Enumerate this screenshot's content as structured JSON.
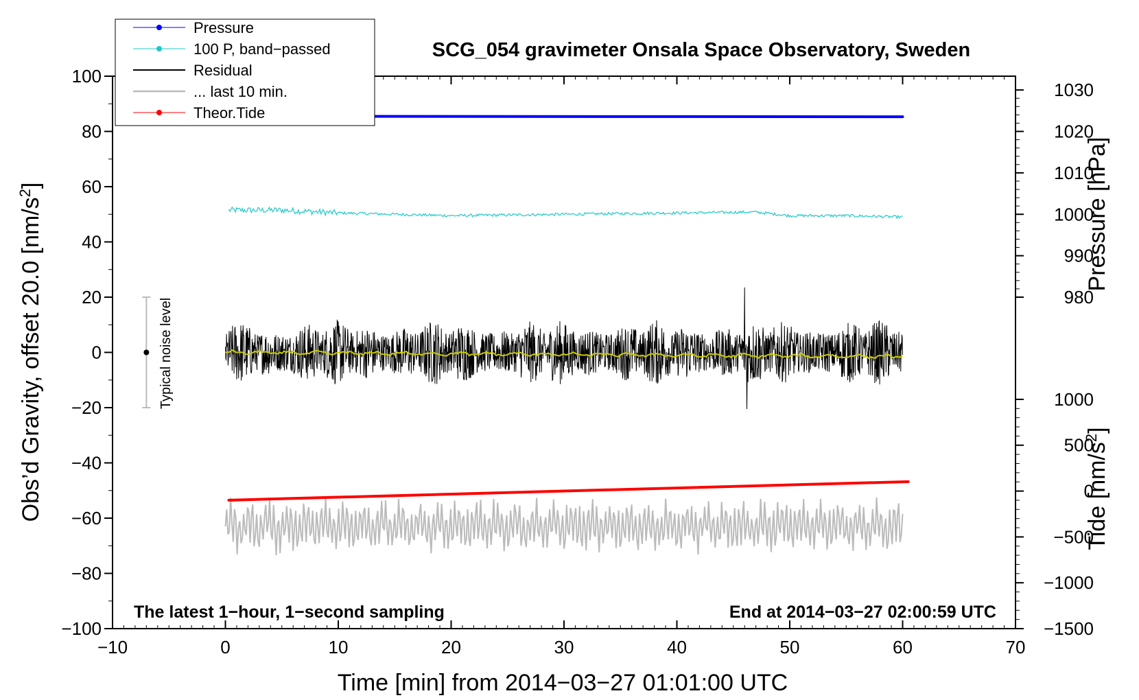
{
  "chart_data": {
    "type": "line",
    "title": "SCG_054 gravimeter Onsala Space Observatory, Sweden",
    "xlabel": "Time [min] from 2014−03−27 01:01:00 UTC",
    "ylabel_main": "Obs’d Gravity, offset 20.0 [nm/s",
    "ylabel_main_sup": "2",
    "ylabel_main_end": "]",
    "ylabel_pressure": "Pressure [hPa]",
    "ylabel_tide": "Tide [nm/s",
    "ylabel_tide_sup": "2",
    "ylabel_tide_end": "]",
    "xlim": [
      -10,
      70
    ],
    "ylim": [
      -100,
      100
    ],
    "x_ticks": [
      -10,
      0,
      10,
      20,
      30,
      40,
      50,
      60,
      70
    ],
    "x_tick_labels": [
      "−10",
      "0",
      "10",
      "20",
      "30",
      "40",
      "50",
      "60",
      "70"
    ],
    "y_ticks": [
      -100,
      -80,
      -60,
      -40,
      -20,
      0,
      20,
      40,
      60,
      80,
      100
    ],
    "y_tick_labels": [
      "−100",
      "−80",
      "−60",
      "−40",
      "−20",
      "0",
      "20",
      "40",
      "60",
      "80",
      "100"
    ],
    "pressure_axis": {
      "ticks": [
        980,
        990,
        1000,
        1010,
        1020,
        1030
      ],
      "tick_labels": [
        "980",
        "990",
        "1000",
        "1010",
        "1020",
        "1030"
      ],
      "range": [
        980,
        1030
      ],
      "main_y_at_range": [
        20,
        95
      ]
    },
    "tide_axis": {
      "ticks": [
        -1500,
        -1000,
        -500,
        0,
        500,
        1000
      ],
      "tick_labels": [
        "−1500",
        "−1000",
        "−500",
        "0",
        "500",
        "1000"
      ],
      "range": [
        -1500,
        1000
      ],
      "main_y_at_range": [
        -100,
        -17
      ]
    },
    "legend": [
      {
        "label": "Pressure",
        "color": "#0000ff",
        "marker": true
      },
      {
        "label": "100 P, band−passed",
        "color": "#20c8c8",
        "marker": true
      },
      {
        "label": "Residual",
        "color": "#000000",
        "marker": false
      },
      {
        "label": "... last 10 min.",
        "color": "#bbbbbb",
        "marker": false
      },
      {
        "label": "Theor.Tide",
        "color": "#ff0000",
        "marker": true
      }
    ],
    "series": [
      {
        "name": "Pressure",
        "color": "#0000ff",
        "x": [
          0,
          60
        ],
        "y": [
          85.5,
          85.3
        ]
      },
      {
        "name": "100 P, band−passed",
        "color": "#20c8c8",
        "x": [
          0.3,
          5,
          10,
          20,
          30,
          40,
          47,
          50,
          55,
          60
        ],
        "y": [
          51.5,
          51.5,
          50.5,
          49.5,
          50,
          50.5,
          50.8,
          49.5,
          49.5,
          49
        ]
      },
      {
        "name": "Residual",
        "color": "#000000",
        "x_range": [
          0,
          60
        ],
        "y_center": 0,
        "amplitude": 12,
        "spikes": [
          {
            "x": 46,
            "y": 23.5
          },
          {
            "x": 46.2,
            "y": -20.5
          }
        ]
      },
      {
        "name": "Residual smoothed",
        "color": "#cccc00",
        "x": [
          0,
          60
        ],
        "y": [
          0,
          -1.5
        ]
      },
      {
        "name": "... last 10 min.",
        "color": "#bbbbbb",
        "x_range": [
          0,
          60
        ],
        "y_center": -63,
        "amplitude": 9
      },
      {
        "name": "Theor.Tide",
        "color": "#ff0000",
        "x": [
          0.3,
          60.5
        ],
        "y": [
          -53.5,
          -46.8
        ]
      }
    ],
    "noise_bar": {
      "x": -7,
      "y_low": -20,
      "y_high": 20,
      "center": 0,
      "label": "Typical noise level"
    },
    "annotations": [
      "The latest 1−hour, 1−second sampling",
      "End at 2014−03−27 02:00:59 UTC"
    ]
  }
}
